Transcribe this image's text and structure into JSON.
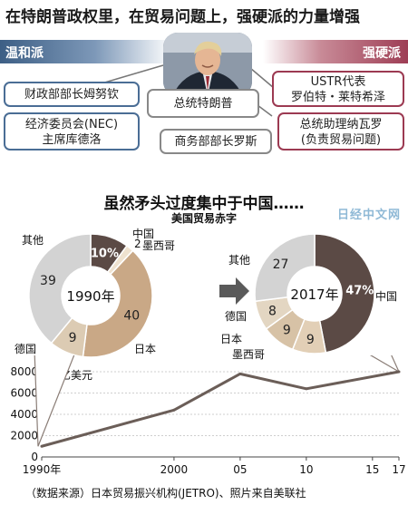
{
  "header": {
    "title": "在特朗普政权里，在贸易问题上，强硬派的力量增强",
    "moderates_label": "温和派",
    "hardliners_label": "强硬派"
  },
  "people": {
    "mnuchin": "财政部部长姆努钦",
    "cohn_line1": "经济委员会(NEC)",
    "cohn_line2": "主席库德洛",
    "trump": "总统特朗普",
    "ross": "商务部部长罗斯",
    "lighthizer_line1": "USTR代表",
    "lighthizer_line2": "罗伯特・莱特希泽",
    "navarro_line1": "总统助理纳瓦罗",
    "navarro_line2": "(负责贸易问题)"
  },
  "watermark": "日经中文网",
  "source": "（数据来源）日本贸易振兴机构(JETRO)、照片来自美联社",
  "chart_data": [
    {
      "type": "pie",
      "title": "虽然矛头过度集中于中国……",
      "subtitle": "美国贸易赤字",
      "center_label": "1990年",
      "slices": [
        {
          "label": "中国",
          "value": 10,
          "display": "10%",
          "color": "#5b4a45"
        },
        {
          "label": "墨西哥",
          "value": 2,
          "display": "2",
          "color": "#efe2cf"
        },
        {
          "label": "日本",
          "value": 40,
          "display": "40",
          "color": "#c9a886"
        },
        {
          "label": "德国",
          "value": 9,
          "display": "9",
          "color": "#dccbb3"
        },
        {
          "label": "其他",
          "value": 39,
          "display": "39",
          "color": "#d3d3d3"
        }
      ]
    },
    {
      "type": "pie",
      "center_label": "2017年",
      "slices": [
        {
          "label": "中国",
          "value": 47,
          "display": "47%",
          "color": "#5b4a45"
        },
        {
          "label": "墨西哥",
          "value": 9,
          "display": "9",
          "color": "#e2cfb6"
        },
        {
          "label": "日本",
          "value": 9,
          "display": "9",
          "color": "#d7c2a6"
        },
        {
          "label": "德国",
          "value": 8,
          "display": "8",
          "color": "#e3d6c2"
        },
        {
          "label": "其他",
          "value": 27,
          "display": "27",
          "color": "#d3d3d3"
        }
      ]
    },
    {
      "type": "line",
      "ylabel": "亿美元",
      "ylim": [
        0,
        8000
      ],
      "yticks": [
        0,
        2000,
        4000,
        6000,
        8000
      ],
      "xlim": [
        1990,
        2017
      ],
      "xticks": [
        1990,
        2000,
        2005,
        2010,
        2015,
        2017
      ],
      "xtick_labels": [
        "1990年",
        "2000",
        "05",
        "10",
        "15",
        "17"
      ],
      "series": [
        {
          "x": [
            1990,
            2000,
            2005,
            2010,
            2017
          ],
          "values": [
            1000,
            4400,
            7800,
            6400,
            8000
          ],
          "color": "#6b5e58"
        }
      ]
    }
  ]
}
